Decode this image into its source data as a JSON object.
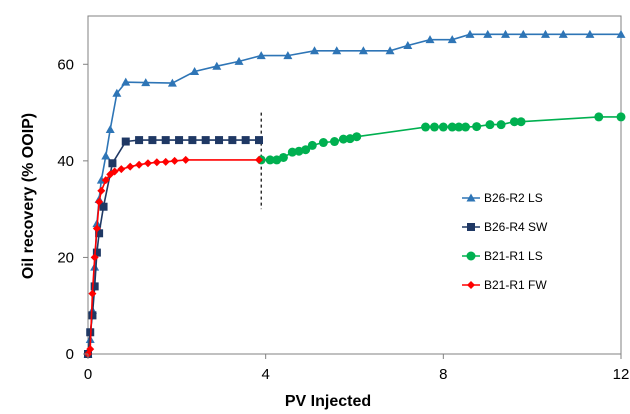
{
  "chart_data": {
    "type": "scatter",
    "xlabel": "PV Injected",
    "ylabel": "Oil recovery  (% OOIP)",
    "xlim": [
      0,
      12
    ],
    "ylim": [
      0,
      70
    ],
    "xticks": [
      0,
      4,
      8,
      12
    ],
    "yticks": [
      0,
      20,
      40,
      60
    ],
    "grid": false,
    "legend_position": "right",
    "annotation": "dashed vertical line at PV Injected = 3.9, spanning 30 to 50 % OOIP",
    "divider": {
      "x": 3.9,
      "y_from": 30,
      "y_to": 50
    },
    "series": [
      {
        "name": "B26-R2 LS",
        "color": "#2E75B6",
        "marker": "triangle",
        "x": [
          0,
          0.05,
          0.1,
          0.15,
          0.2,
          0.25,
          0.3,
          0.4,
          0.5,
          0.65,
          0.85,
          1.3,
          1.9,
          2.4,
          2.9,
          3.4,
          3.9,
          4.5,
          5.1,
          5.6,
          6.2,
          6.8,
          7.2,
          7.7,
          8.2,
          8.6,
          9.0,
          9.4,
          9.8,
          10.3,
          10.7,
          11.3,
          12.0
        ],
        "y": [
          0,
          3,
          9,
          18,
          27,
          32,
          36,
          41,
          46.5,
          54,
          56.3,
          56.2,
          56.1,
          58.5,
          59.6,
          60.6,
          61.8,
          61.8,
          62.8,
          62.8,
          62.8,
          62.8,
          63.9,
          65.1,
          65.1,
          66.2,
          66.2,
          66.2,
          66.2,
          66.2,
          66.2,
          66.2,
          66.2
        ]
      },
      {
        "name": "B26-R4 SW",
        "color": "#1F3864",
        "marker": "square",
        "x": [
          0,
          0.05,
          0.1,
          0.15,
          0.2,
          0.25,
          0.35,
          0.55,
          0.85,
          1.15,
          1.45,
          1.75,
          2.05,
          2.35,
          2.65,
          2.95,
          3.25,
          3.55,
          3.85
        ],
        "y": [
          0,
          4.5,
          8,
          14,
          21,
          25,
          30.5,
          39.5,
          44,
          44.3,
          44.3,
          44.3,
          44.3,
          44.3,
          44.3,
          44.3,
          44.3,
          44.3,
          44.3
        ]
      },
      {
        "name": "B21-R1 LS",
        "color": "#00B050",
        "marker": "circle",
        "x": [
          3.9,
          4.1,
          4.25,
          4.4,
          4.6,
          4.75,
          4.9,
          5.05,
          5.3,
          5.55,
          5.75,
          5.9,
          6.05,
          7.6,
          7.8,
          8.0,
          8.2,
          8.35,
          8.5,
          8.75,
          9.05,
          9.3,
          9.6,
          9.75,
          11.5,
          12.0
        ],
        "y": [
          40.2,
          40.2,
          40.2,
          40.7,
          41.8,
          42.0,
          42.3,
          43.2,
          43.8,
          44.0,
          44.5,
          44.6,
          45.0,
          47.0,
          47.0,
          47.0,
          47.0,
          47.0,
          47.0,
          47.1,
          47.5,
          47.5,
          48.1,
          48.1,
          49.1,
          49.1
        ]
      },
      {
        "name": "B21-R1 FW",
        "color": "#FF0000",
        "marker": "diamond",
        "x": [
          0,
          0.05,
          0.1,
          0.15,
          0.2,
          0.25,
          0.3,
          0.4,
          0.5,
          0.6,
          0.75,
          0.95,
          1.15,
          1.35,
          1.55,
          1.75,
          1.95,
          2.2,
          3.85
        ],
        "y": [
          0,
          1,
          12.5,
          20,
          26,
          31.5,
          33.8,
          36,
          37.2,
          37.8,
          38.3,
          38.8,
          39.2,
          39.5,
          39.7,
          39.8,
          40.0,
          40.2,
          40.2
        ]
      }
    ]
  }
}
